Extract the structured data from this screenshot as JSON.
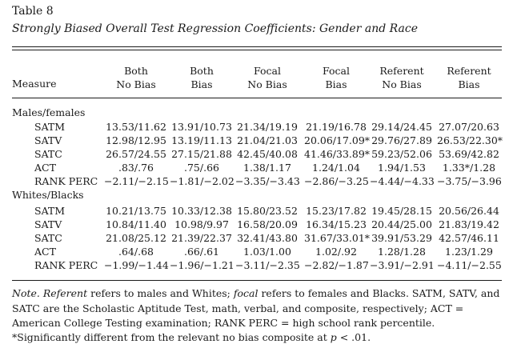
{
  "table_label": "Table 8",
  "table_title": "Strongly Biased Overall Test Regression Coefficients: Gender and Race",
  "header": {
    "measure": "Measure",
    "columns": [
      {
        "line1": "Both",
        "line2": "No Bias"
      },
      {
        "line1": "Both",
        "line2": "Bias"
      },
      {
        "line1": "Focal",
        "line2": "No Bias"
      },
      {
        "line1": "Focal",
        "line2": "Bias"
      },
      {
        "line1": "Referent",
        "line2": "No Bias"
      },
      {
        "line1": "Referent",
        "line2": "Bias"
      }
    ]
  },
  "sections": [
    {
      "label": "Males/females",
      "rows": [
        {
          "measure": "SATM",
          "values": [
            "13.53/11.62",
            "13.91/10.73",
            "21.34/19.19",
            "21.19/16.78",
            "29.14/24.45",
            "27.07/20.63"
          ]
        },
        {
          "measure": "SATV",
          "values": [
            "12.98/12.95",
            "13.19/11.13",
            "21.04/21.03",
            "20.06/17.09*",
            "29.76/27.89",
            "26.53/22.30*"
          ]
        },
        {
          "measure": "SATC",
          "values": [
            "26.57/24.55",
            "27.15/21.88",
            "42.45/40.08",
            "41.46/33.89*",
            "59.23/52.06",
            "53.69/42.82"
          ]
        },
        {
          "measure": "ACT",
          "values": [
            ".83/.76",
            ".75/.66",
            "1.38/1.17",
            "1.24/1.04",
            "1.94/1.53",
            "1.33*/1.28"
          ]
        },
        {
          "measure": "RANK PERC",
          "values": [
            "−2.11/−2.15",
            "−1.81/−2.02",
            "−3.35/−3.43",
            "−2.86/−3.25",
            "−4.44/−4.33",
            "−3.75/−3.96"
          ]
        }
      ]
    },
    {
      "label": "Whites/Blacks",
      "rows": [
        {
          "measure": "SATM",
          "values": [
            "10.21/13.75",
            "10.33/12.38",
            "15.80/23.52",
            "15.23/17.82",
            "19.45/28.15",
            "20.56/26.44"
          ]
        },
        {
          "measure": "SATV",
          "values": [
            "10.84/11.40",
            "10.98/9.97",
            "16.58/20.09",
            "16.34/15.23",
            "20.44/25.00",
            "21.83/19.42"
          ]
        },
        {
          "measure": "SATC",
          "values": [
            "21.08/25.12",
            "21.39/22.37",
            "32.41/43.80",
            "31.67/33.01*",
            "39.91/53.29",
            "42.57/46.11"
          ]
        },
        {
          "measure": "ACT",
          "values": [
            ".64/.68",
            ".66/.61",
            "1.03/1.00",
            "1.02/.92",
            "1.28/1.28",
            "1.23/1.29"
          ]
        },
        {
          "measure": "RANK PERC",
          "values": [
            "−1.99/−1.44",
            "−1.96/−1.21",
            "−3.11/−2.35",
            "−2.82/−1.87",
            "−3.91/−2.91",
            "−4.11/−2.55"
          ]
        }
      ]
    }
  ],
  "note": {
    "prefix": "Note.",
    "referent_word": "Referent",
    "text1": " refers to males and Whites; ",
    "focal_word": "focal",
    "text2": " refers to females and Blacks. SATM, SATV, and SATC are the Scholastic Aptitude Test, math, verbal, and composite, respectively; ACT = American College Testing examination; RANK PERC = high school rank percentile."
  },
  "footnote": {
    "text": "*Significantly different from the relevant no bias composite at ",
    "p_symbol": "p",
    "threshold": " < .01."
  }
}
